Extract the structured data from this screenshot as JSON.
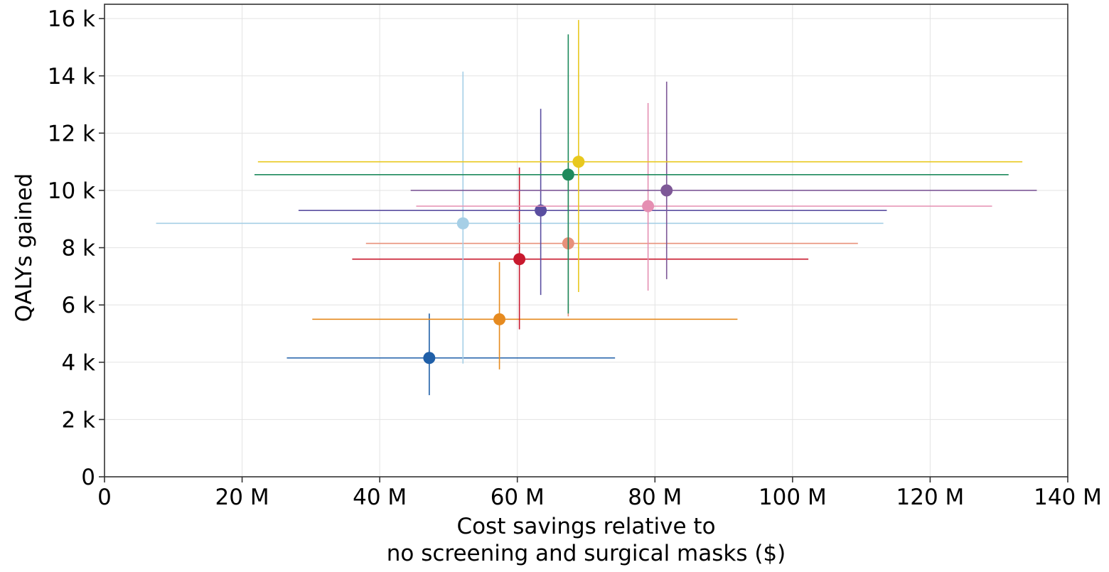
{
  "chart_data": {
    "type": "scatter",
    "title": "",
    "xlabel_lines": [
      "Cost savings relative to",
      "no screening and surgical masks ($)"
    ],
    "ylabel": "QALYs gained",
    "xlim": [
      0,
      140
    ],
    "ylim": [
      0,
      16.5
    ],
    "x_unit": "M",
    "y_unit": "k",
    "x_ticks": [
      {
        "value": 0,
        "label": "0"
      },
      {
        "value": 20,
        "label": "20 M"
      },
      {
        "value": 40,
        "label": "40 M"
      },
      {
        "value": 60,
        "label": "60 M"
      },
      {
        "value": 80,
        "label": "80 M"
      },
      {
        "value": 100,
        "label": "100 M"
      },
      {
        "value": 120,
        "label": "120 M"
      },
      {
        "value": 140,
        "label": "140 M"
      }
    ],
    "y_ticks": [
      {
        "value": 0,
        "label": "0"
      },
      {
        "value": 2,
        "label": "2 k"
      },
      {
        "value": 4,
        "label": "4 k"
      },
      {
        "value": 6,
        "label": "6 k"
      },
      {
        "value": 8,
        "label": "8 k"
      },
      {
        "value": 10,
        "label": "10 k"
      },
      {
        "value": 12,
        "label": "12 k"
      },
      {
        "value": 14,
        "label": "14 k"
      },
      {
        "value": 16,
        "label": "16 k"
      }
    ],
    "grid": true,
    "legend": "none",
    "points": [
      {
        "color": "#1f5fa8",
        "x": 47.2,
        "y": 4.15,
        "x_low": 26.5,
        "x_high": 74.2,
        "y_low": 2.85,
        "y_high": 5.7
      },
      {
        "color": "#e68a1f",
        "x": 57.4,
        "y": 5.5,
        "x_low": 30.2,
        "x_high": 92.0,
        "y_low": 3.75,
        "y_high": 7.5
      },
      {
        "color": "#c8192e",
        "x": 60.3,
        "y": 7.6,
        "x_low": 36.0,
        "x_high": 102.3,
        "y_low": 5.15,
        "y_high": 10.8
      },
      {
        "color": "#e8907a",
        "x": 67.4,
        "y": 8.15,
        "x_low": 38.0,
        "x_high": 109.5,
        "y_low": 5.6,
        "y_high": 11.0
      },
      {
        "color": "#a6cfe6",
        "x": 52.1,
        "y": 8.85,
        "x_low": 7.5,
        "x_high": 113.2,
        "y_low": 3.95,
        "y_high": 14.15
      },
      {
        "color": "#5a4ea0",
        "x": 63.4,
        "y": 9.3,
        "x_low": 28.2,
        "x_high": 113.7,
        "y_low": 6.35,
        "y_high": 12.85
      },
      {
        "color": "#e58fb2",
        "x": 79.0,
        "y": 9.45,
        "x_low": 45.3,
        "x_high": 129.0,
        "y_low": 6.5,
        "y_high": 13.05
      },
      {
        "color": "#7e5897",
        "x": 81.7,
        "y": 10.0,
        "x_low": 44.5,
        "x_high": 135.5,
        "y_low": 6.9,
        "y_high": 13.8
      },
      {
        "color": "#1e8a5c",
        "x": 67.4,
        "y": 10.55,
        "x_low": 21.8,
        "x_high": 131.4,
        "y_low": 5.7,
        "y_high": 15.45
      },
      {
        "color": "#e8c81e",
        "x": 68.9,
        "y": 11.0,
        "x_low": 22.3,
        "x_high": 133.4,
        "y_low": 6.45,
        "y_high": 15.95
      }
    ]
  }
}
